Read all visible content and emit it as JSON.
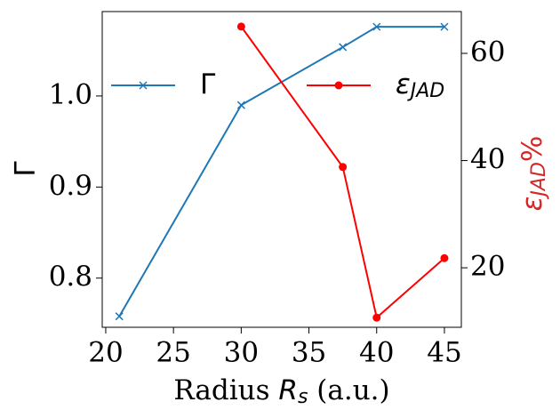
{
  "chart_data": {
    "type": "line",
    "xlabel": [
      "Radius ",
      "R",
      "s",
      " (a.u.)"
    ],
    "ylabel": "Γ",
    "y2label": [
      "ε",
      "JAD",
      "%"
    ],
    "xlim": [
      19.74,
      46.25
    ],
    "xticks": [
      20,
      25,
      30,
      35,
      40,
      45
    ],
    "ylim": [
      0.746,
      1.0927
    ],
    "yticks": [
      {
        "value": 0.8,
        "label": "0.8"
      },
      {
        "value": 0.9,
        "label": "0.9"
      },
      {
        "value": 1.0,
        "label": "1.0"
      }
    ],
    "y2lim": [
      8.9,
      67.8
    ],
    "y2ticks": [
      20,
      40,
      60
    ],
    "series": [
      {
        "name": "Γ",
        "color": "#1f77b4",
        "marker": "x",
        "x": [
          21,
          30,
          37.5,
          40,
          45
        ],
        "values": [
          0.758,
          0.99,
          1.0537,
          1.076,
          1.076
        ]
      },
      {
        "name": "ε",
        "name_sub": "JAD",
        "color": "#ff0000",
        "marker": "o",
        "axis": "y2",
        "x": [
          30,
          37.5,
          40,
          45
        ],
        "values": [
          65,
          38.8,
          10.7,
          21.8
        ]
      }
    ],
    "y2_tick_color": "#d62728"
  }
}
